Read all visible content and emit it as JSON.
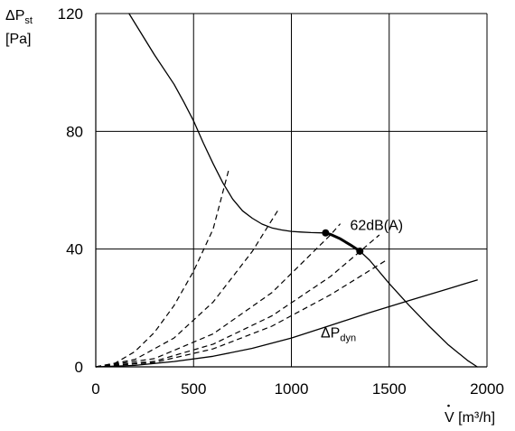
{
  "chart_data": {
    "type": "line",
    "xlabel": {
      "prefix": "V",
      "suffix": " [m³/h]"
    },
    "ylabel": {
      "delta": "ΔP",
      "sub": "st",
      "unit": "[Pa]"
    },
    "xlim": [
      0,
      2000
    ],
    "ylim": [
      0,
      120
    ],
    "xticks": [
      0,
      500,
      1000,
      1500,
      2000
    ],
    "yticks": [
      0,
      40,
      80,
      120
    ],
    "grid": true,
    "series": [
      {
        "role": "fan-curve",
        "style": "solid",
        "x": [
          170,
          300,
          400,
          450,
          500,
          550,
          600,
          650,
          700,
          750,
          800,
          850,
          900,
          950,
          1000,
          1050,
          1100,
          1150,
          1175,
          1200,
          1250,
          1300,
          1350,
          1400,
          1500,
          1600,
          1700,
          1800,
          1900,
          1950
        ],
        "y": [
          120,
          106,
          96,
          90,
          83.5,
          76,
          69,
          62.5,
          57,
          53,
          50.5,
          48.5,
          47.2,
          46.5,
          46,
          45.8,
          45.6,
          45.5,
          45.5,
          45,
          43.5,
          41.5,
          39.3,
          36.2,
          28.3,
          21,
          14.1,
          7.6,
          2.2,
          0
        ]
      },
      {
        "role": "operating-range",
        "style": "bold",
        "x": [
          1175,
          1200,
          1250,
          1300,
          1350
        ],
        "y": [
          45.5,
          45,
          43.5,
          41.5,
          39.3
        ]
      },
      {
        "role": "dynamic-pressure",
        "style": "solid",
        "x": [
          0,
          200,
          400,
          600,
          800,
          1000,
          1200,
          1400,
          1600,
          1800,
          1950
        ],
        "y": [
          0,
          0.5,
          1.8,
          3.6,
          6.3,
          9.8,
          14.1,
          18.4,
          22.5,
          26.5,
          29.5
        ]
      },
      {
        "role": "system-curve",
        "style": "dashed",
        "x": [
          0,
          100,
          200,
          300,
          400,
          500,
          600,
          680
        ],
        "y": [
          0,
          1.3,
          5.2,
          11.7,
          20.8,
          32.5,
          46.8,
          67
        ]
      },
      {
        "role": "system-curve",
        "style": "dashed",
        "x": [
          0,
          200,
          400,
          600,
          800,
          930
        ],
        "y": [
          0,
          2.5,
          9.8,
          22,
          39.2,
          53
        ]
      },
      {
        "role": "system-curve",
        "style": "dashed",
        "x": [
          0,
          300,
          600,
          900,
          1200,
          1250
        ],
        "y": [
          0,
          2.8,
          11.2,
          25.2,
          44.8,
          48.6
        ]
      },
      {
        "role": "system-curve",
        "style": "dashed",
        "x": [
          0,
          300,
          600,
          900,
          1200,
          1450
        ],
        "y": [
          0,
          1.9,
          7.7,
          17.3,
          30.7,
          44.8
        ]
      },
      {
        "role": "system-curve",
        "style": "dashed",
        "x": [
          0,
          300,
          600,
          900,
          1200,
          1480
        ],
        "y": [
          0,
          1.5,
          6.1,
          13.8,
          24.5,
          36
        ]
      }
    ],
    "points": [
      {
        "x": 1175,
        "y": 45.5
      },
      {
        "x": 1350,
        "y": 39.3
      }
    ],
    "annotations": [
      {
        "text": "62dB(A)",
        "x": 1300,
        "y": 46.5
      },
      {
        "delta": "ΔP",
        "sub": "dyn",
        "x": 1150,
        "y": 10
      }
    ]
  }
}
